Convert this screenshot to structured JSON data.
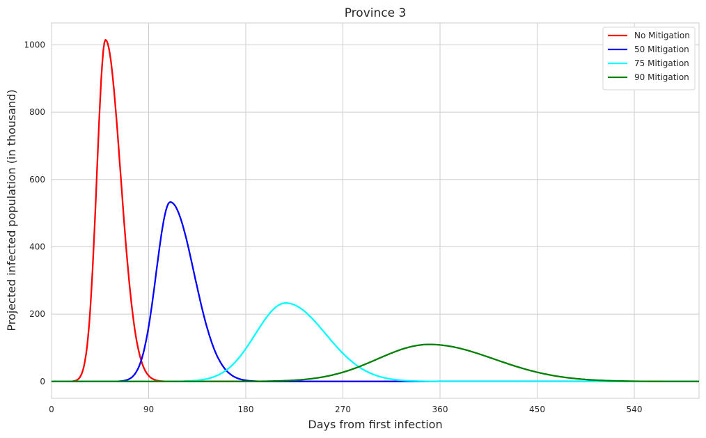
{
  "chart_data": {
    "type": "line",
    "title": "Province 3",
    "xlabel": "Days from first infection",
    "ylabel": "Projected infected population (in thousand)",
    "xlim": [
      0,
      600
    ],
    "ylim": [
      -50,
      1065
    ],
    "xticks": [
      0,
      90,
      180,
      270,
      360,
      450,
      540
    ],
    "yticks": [
      0,
      200,
      400,
      600,
      800,
      1000
    ],
    "grid": true,
    "legend_position": "top-right",
    "series": [
      {
        "name": "No Mitigation",
        "color": "#ff0000",
        "peak_x": 50,
        "peak_y": 1015,
        "sigma_left": 8,
        "sigma_right": 14
      },
      {
        "name": "50 Mitigation",
        "color": "#0000ff",
        "peak_x": 110,
        "peak_y": 533,
        "sigma_left": 13,
        "sigma_right": 22
      },
      {
        "name": "75 Mitigation",
        "color": "#00ffff",
        "peak_x": 217,
        "peak_y": 233,
        "sigma_left": 28,
        "sigma_right": 37
      },
      {
        "name": "90 Mitigation",
        "color": "#008000",
        "peak_x": 350,
        "peak_y": 110,
        "sigma_left": 48,
        "sigma_right": 60
      }
    ]
  }
}
